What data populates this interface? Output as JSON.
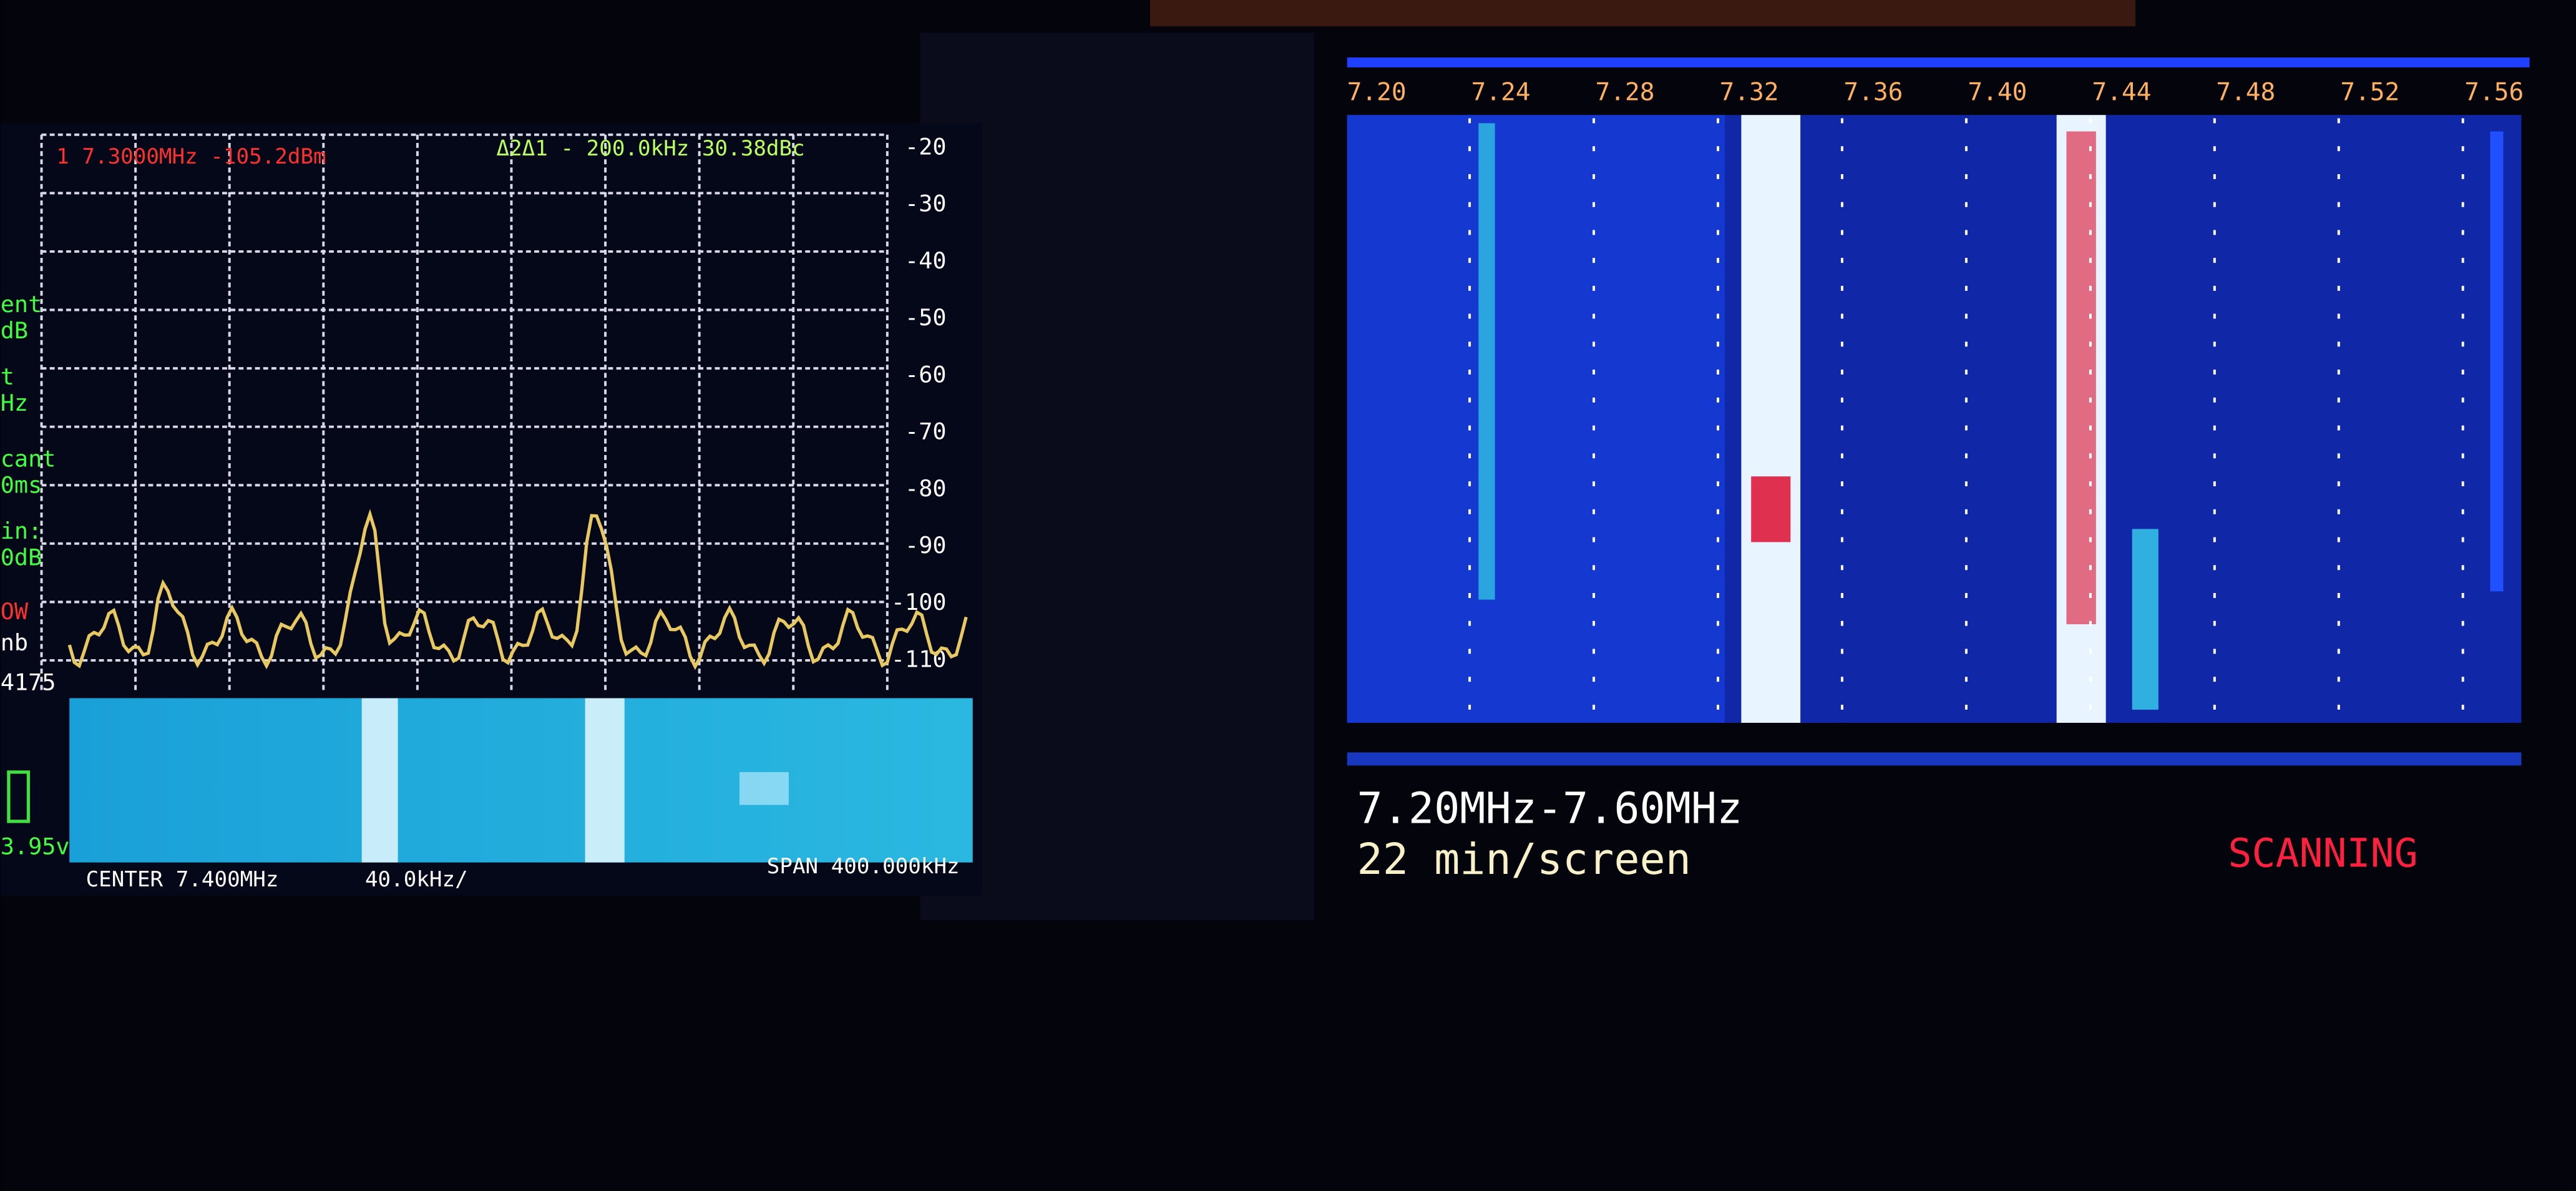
{
  "left_screen": {
    "marker": "1  7.3000MHz -105.2dBm",
    "delta": "Δ2Δ1 -  200.0kHz 30.38dBc",
    "level_labels": [
      "-20",
      "-30",
      "-40",
      "-50",
      "-60",
      "-70",
      "-80",
      "-90",
      "-100",
      "-110"
    ],
    "sidebar": [
      "ent",
      "dB",
      "t",
      "Hz",
      "cant",
      "0ms",
      "in:",
      "0dB",
      "OW",
      "nb",
      "4175",
      "3.95v"
    ],
    "footer": {
      "center": "CENTER 7.400MHz",
      "scale": "40.0kHz/",
      "span": "SPAN 400.000kHz"
    }
  },
  "right_screen": {
    "freq_labels": [
      "7.20",
      "7.24",
      "7.28",
      "7.32",
      "7.36",
      "7.40",
      "7.44",
      "7.48",
      "7.52",
      "7.56"
    ],
    "range": "7.20MHz-7.60MHz",
    "rate": "22 min/screen",
    "status": "SCANNING"
  }
}
